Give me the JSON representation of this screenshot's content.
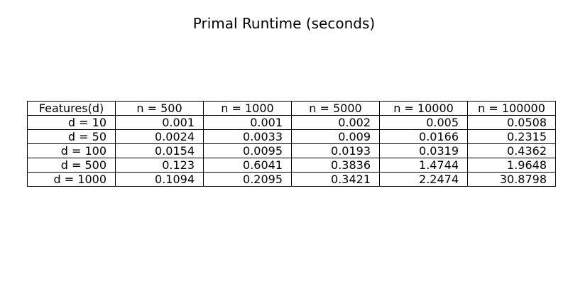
{
  "chart_data": {
    "type": "table",
    "title": "Primal Runtime (seconds)",
    "columns": [
      "Features(d)",
      "n = 500",
      "n = 1000",
      "n = 5000",
      "n = 10000",
      "n = 100000"
    ],
    "rows": [
      [
        "d = 10",
        "0.001",
        "0.001",
        "0.002",
        "0.005",
        "0.0508"
      ],
      [
        "d = 50",
        "0.0024",
        "0.0033",
        "0.009",
        "0.0166",
        "0.2315"
      ],
      [
        "d = 100",
        "0.0154",
        "0.0095",
        "0.0193",
        "0.0319",
        "0.4362"
      ],
      [
        "d = 500",
        "0.123",
        "0.6041",
        "0.3836",
        "1.4744",
        "1.9648"
      ],
      [
        "d = 1000",
        "0.1094",
        "0.2095",
        "0.3421",
        "2.2474",
        "30.8798"
      ]
    ]
  }
}
